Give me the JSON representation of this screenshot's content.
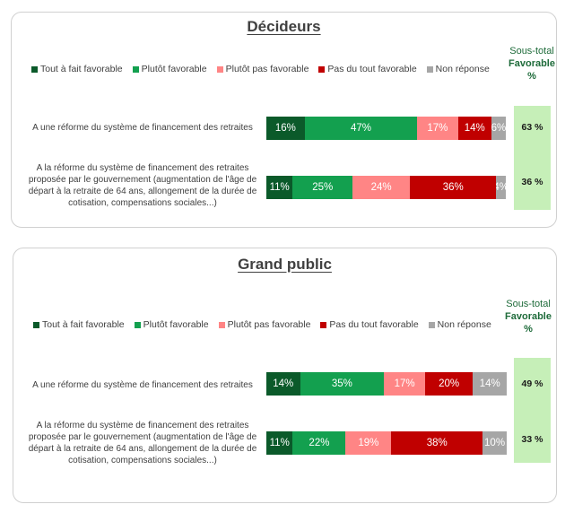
{
  "colors": {
    "tout_a_fait_favorable": "#0b5a2a",
    "plutot_favorable": "#13a04f",
    "plutot_pas_favorable": "#ff8585",
    "pas_du_tout_favorable": "#c00000",
    "non_reponse": "#a6a6a6",
    "subtotal_bg": "#c6efb8",
    "subtotal_text": "#1e6b3a"
  },
  "legend": [
    {
      "label": "Tout à fait favorable",
      "key": "tout_a_fait_favorable"
    },
    {
      "label": "Plutôt favorable",
      "key": "plutot_favorable"
    },
    {
      "label": "Plutôt pas favorable",
      "key": "plutot_pas_favorable"
    },
    {
      "label": "Pas du tout favorable",
      "key": "pas_du_tout_favorable"
    },
    {
      "label": "Non réponse",
      "key": "non_reponse"
    }
  ],
  "subtotal_header": {
    "line1": "Sous-total",
    "line2": "Favorable",
    "line3": "%"
  },
  "panels": [
    {
      "title": "Décideurs",
      "rows": [
        {
          "label": "A une réforme du système de financement des retraites",
          "values": [
            16,
            47,
            17,
            14,
            6
          ],
          "labels": [
            "16%",
            "47%",
            "17%",
            "14%",
            "6%"
          ],
          "subtotal": "63 %"
        },
        {
          "label": "A la réforme du système de financement des retraites proposée par le gouvernement (augmentation de l'âge de départ à la retraite de 64 ans, allongement de la durée de cotisation, compensations sociales...)",
          "values": [
            11,
            25,
            24,
            36,
            4
          ],
          "labels": [
            "11%",
            "25%",
            "24%",
            "36%",
            "4%"
          ],
          "subtotal": "36 %"
        }
      ]
    },
    {
      "title": "Grand public",
      "rows": [
        {
          "label": "A une réforme du système de financement des retraites",
          "values": [
            14,
            35,
            17,
            20,
            14
          ],
          "labels": [
            "14%",
            "35%",
            "17%",
            "20%",
            "14%"
          ],
          "subtotal": "49 %"
        },
        {
          "label": "A la réforme du système de financement des retraites proposée par le gouvernement (augmentation de l'âge de départ à la retraite de 64 ans, allongement de la durée de cotisation, compensations sociales...)",
          "values": [
            11,
            22,
            19,
            38,
            10
          ],
          "labels": [
            "11%",
            "22%",
            "19%",
            "38%",
            "10%"
          ],
          "subtotal": "33 %"
        }
      ]
    }
  ],
  "chart_data": [
    {
      "type": "bar",
      "orientation": "horizontal",
      "stacked": true,
      "title": "Décideurs",
      "categories": [
        "A une réforme du système de financement des retraites",
        "A la réforme du système de financement des retraites proposée par le gouvernement (augmentation de l'âge de départ à la retraite de 64 ans, allongement de la durée de cotisation, compensations sociales...)"
      ],
      "series": [
        {
          "name": "Tout à fait favorable",
          "values": [
            16,
            11
          ],
          "color": "#0b5a2a"
        },
        {
          "name": "Plutôt favorable",
          "values": [
            47,
            25
          ],
          "color": "#13a04f"
        },
        {
          "name": "Plutôt pas favorable",
          "values": [
            17,
            24
          ],
          "color": "#ff8585"
        },
        {
          "name": "Pas du tout favorable",
          "values": [
            14,
            36
          ],
          "color": "#c00000"
        },
        {
          "name": "Non réponse",
          "values": [
            6,
            4
          ],
          "color": "#a6a6a6"
        }
      ],
      "subtotal": {
        "label": "Sous-total Favorable %",
        "values": [
          63,
          36
        ]
      },
      "xlim": [
        0,
        100
      ],
      "legend_position": "top",
      "grid": false
    },
    {
      "type": "bar",
      "orientation": "horizontal",
      "stacked": true,
      "title": "Grand public",
      "categories": [
        "A une réforme du système de financement des retraites",
        "A la réforme du système de financement des retraites proposée par le gouvernement (augmentation de l'âge de départ à la retraite de 64 ans, allongement de la durée de cotisation, compensations sociales...)"
      ],
      "series": [
        {
          "name": "Tout à fait favorable",
          "values": [
            14,
            11
          ],
          "color": "#0b5a2a"
        },
        {
          "name": "Plutôt favorable",
          "values": [
            35,
            22
          ],
          "color": "#13a04f"
        },
        {
          "name": "Plutôt pas favorable",
          "values": [
            17,
            19
          ],
          "color": "#ff8585"
        },
        {
          "name": "Pas du tout favorable",
          "values": [
            20,
            38
          ],
          "color": "#c00000"
        },
        {
          "name": "Non réponse",
          "values": [
            14,
            10
          ],
          "color": "#a6a6a6"
        }
      ],
      "subtotal": {
        "label": "Sous-total Favorable %",
        "values": [
          49,
          33
        ]
      },
      "xlim": [
        0,
        100
      ],
      "legend_position": "top",
      "grid": false
    }
  ]
}
